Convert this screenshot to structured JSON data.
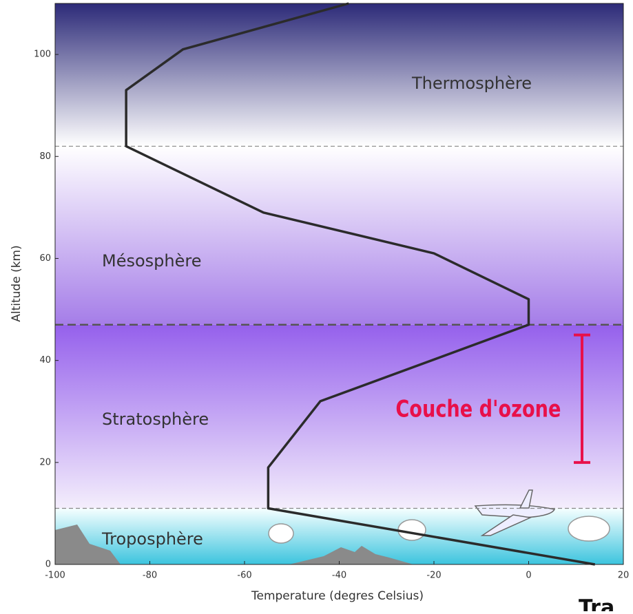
{
  "chart_data": {
    "type": "line",
    "xlabel": "Temperature (degres Celsius)",
    "ylabel": "Altitude (km)",
    "xlim": [
      -100,
      20
    ],
    "ylim": [
      0,
      110
    ],
    "xticks": [
      -100,
      -80,
      -60,
      -40,
      -20,
      0,
      20
    ],
    "yticks": [
      0,
      20,
      40,
      60,
      80,
      100
    ],
    "series": [
      {
        "color": "#2b2b2b",
        "x": [
          -38,
          -73,
          -85,
          -85,
          -56,
          -20,
          0,
          0,
          -44,
          -55,
          -55,
          14
        ],
        "values": [
          110,
          101,
          93,
          82,
          69,
          61,
          52,
          47,
          32,
          19,
          11,
          0
        ]
      }
    ],
    "hlines": [
      11,
      47,
      82
    ],
    "layers": [
      "Troposphère",
      "Stratosphère",
      "Mésosphère",
      "Thermosphère"
    ],
    "ozone": {
      "label": "Couche d'ozone",
      "range": [
        20,
        45
      ],
      "color": "#e8104a"
    },
    "corner_text": "Tra"
  }
}
